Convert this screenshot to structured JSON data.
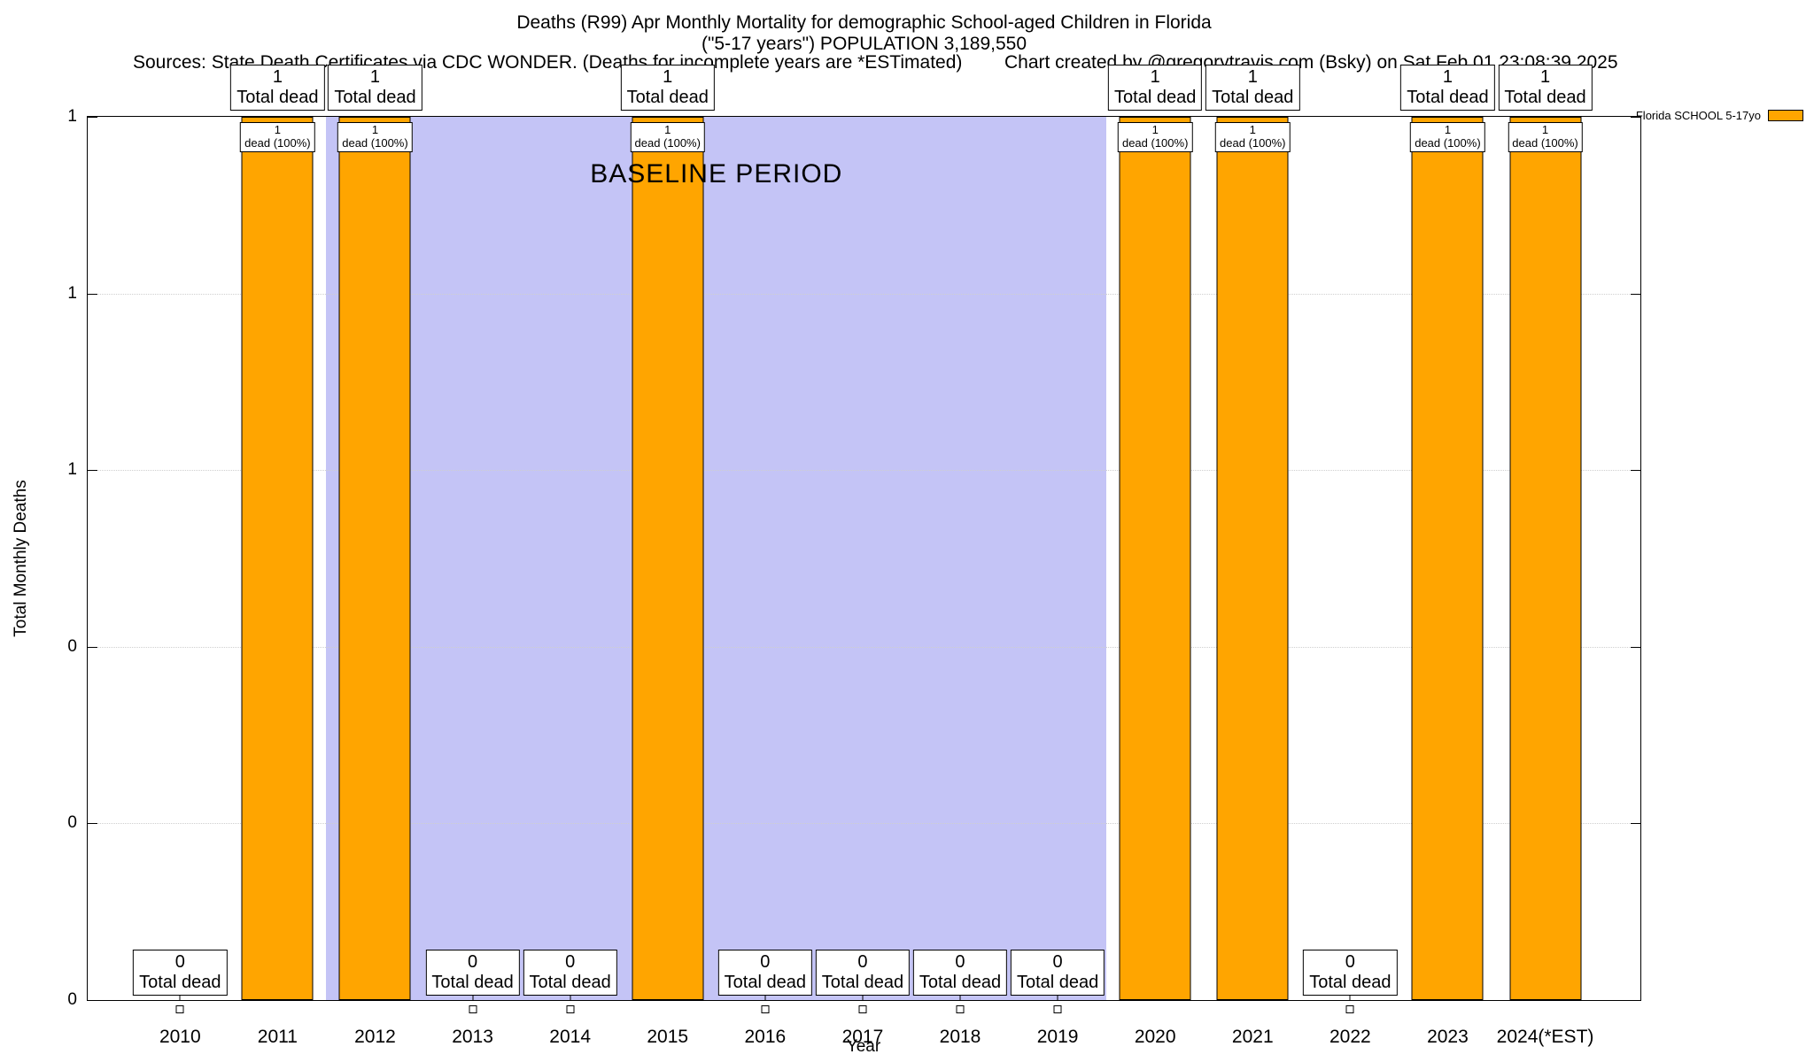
{
  "chart_data": {
    "type": "bar",
    "title": "Deaths (R99) Apr Monthly Mortality for demographic School-aged Children in Florida",
    "subtitle": "(\"5-17 years\") POPULATION 3,189,550",
    "notes": {
      "sources": "Sources: State Death Certificates via CDC WONDER. (Deaths for incomplete years are *ESTimated)",
      "credit": "Chart created by @gregorytravis.com (Bsky) on Sat Feb 01 23:08:39 2025"
    },
    "xlabel": "Year",
    "ylabel": "Total Monthly Deaths",
    "ylim": [
      0,
      1
    ],
    "grid": true,
    "legend": {
      "position": "top-right",
      "entries": [
        {
          "label": "Florida SCHOOL 5-17yo",
          "color": "#FFA500"
        }
      ]
    },
    "categories": [
      "2010",
      "2011",
      "2012",
      "2013",
      "2014",
      "2015",
      "2016",
      "2017",
      "2018",
      "2019",
      "2020",
      "2021",
      "2022",
      "2023",
      "2024(*EST)"
    ],
    "series": [
      {
        "name": "Florida SCHOOL 5-17yo",
        "color": "#FFA500",
        "values": [
          0,
          1,
          1,
          0,
          0,
          1,
          0,
          0,
          0,
          0,
          1,
          1,
          0,
          1,
          1
        ]
      }
    ],
    "ytick_labels_top_to_bottom": [
      "1",
      "1",
      "1",
      "0",
      "0",
      "0"
    ],
    "baseline_band": {
      "label": "BASELINE PERIOD",
      "start_category": "2012",
      "end_category": "2019",
      "color": "#c4c4f6"
    },
    "bar_annotations": [
      {
        "category": "2010",
        "value": 0,
        "box": [
          "0",
          "Total dead"
        ]
      },
      {
        "category": "2011",
        "value": 1,
        "box_above": [
          "1",
          "Total dead"
        ],
        "box_in_bar": [
          "1",
          "dead (100%)"
        ]
      },
      {
        "category": "2012",
        "value": 1,
        "box_above": [
          "1",
          "Total dead"
        ],
        "box_in_bar": [
          "1",
          "dead (100%)"
        ]
      },
      {
        "category": "2013",
        "value": 0,
        "box": [
          "0",
          "Total dead"
        ]
      },
      {
        "category": "2014",
        "value": 0,
        "box": [
          "0",
          "Total dead"
        ]
      },
      {
        "category": "2015",
        "value": 1,
        "box_above": [
          "1",
          "Total dead"
        ],
        "box_in_bar": [
          "1",
          "dead (100%)"
        ]
      },
      {
        "category": "2016",
        "value": 0,
        "box": [
          "0",
          "Total dead"
        ]
      },
      {
        "category": "2017",
        "value": 0,
        "box": [
          "0",
          "Total dead"
        ]
      },
      {
        "category": "2018",
        "value": 0,
        "box": [
          "0",
          "Total dead"
        ]
      },
      {
        "category": "2019",
        "value": 0,
        "box": [
          "0",
          "Total dead"
        ]
      },
      {
        "category": "2020",
        "value": 1,
        "box_above": [
          "1",
          "Total dead"
        ],
        "box_in_bar": [
          "1",
          "dead (100%)"
        ]
      },
      {
        "category": "2021",
        "value": 1,
        "box_above": [
          "1",
          "Total dead"
        ],
        "box_in_bar": [
          "1",
          "dead (100%)"
        ]
      },
      {
        "category": "2022",
        "value": 0,
        "box": [
          "0",
          "Total dead"
        ]
      },
      {
        "category": "2023",
        "value": 1,
        "box_above": [
          "1",
          "Total dead"
        ],
        "box_in_bar": [
          "1",
          "dead (100%)"
        ]
      },
      {
        "category": "2024(*EST)",
        "value": 1,
        "box_above": [
          "1",
          "Total dead"
        ],
        "box_in_bar": [
          "1",
          "dead (100%)"
        ]
      }
    ]
  }
}
